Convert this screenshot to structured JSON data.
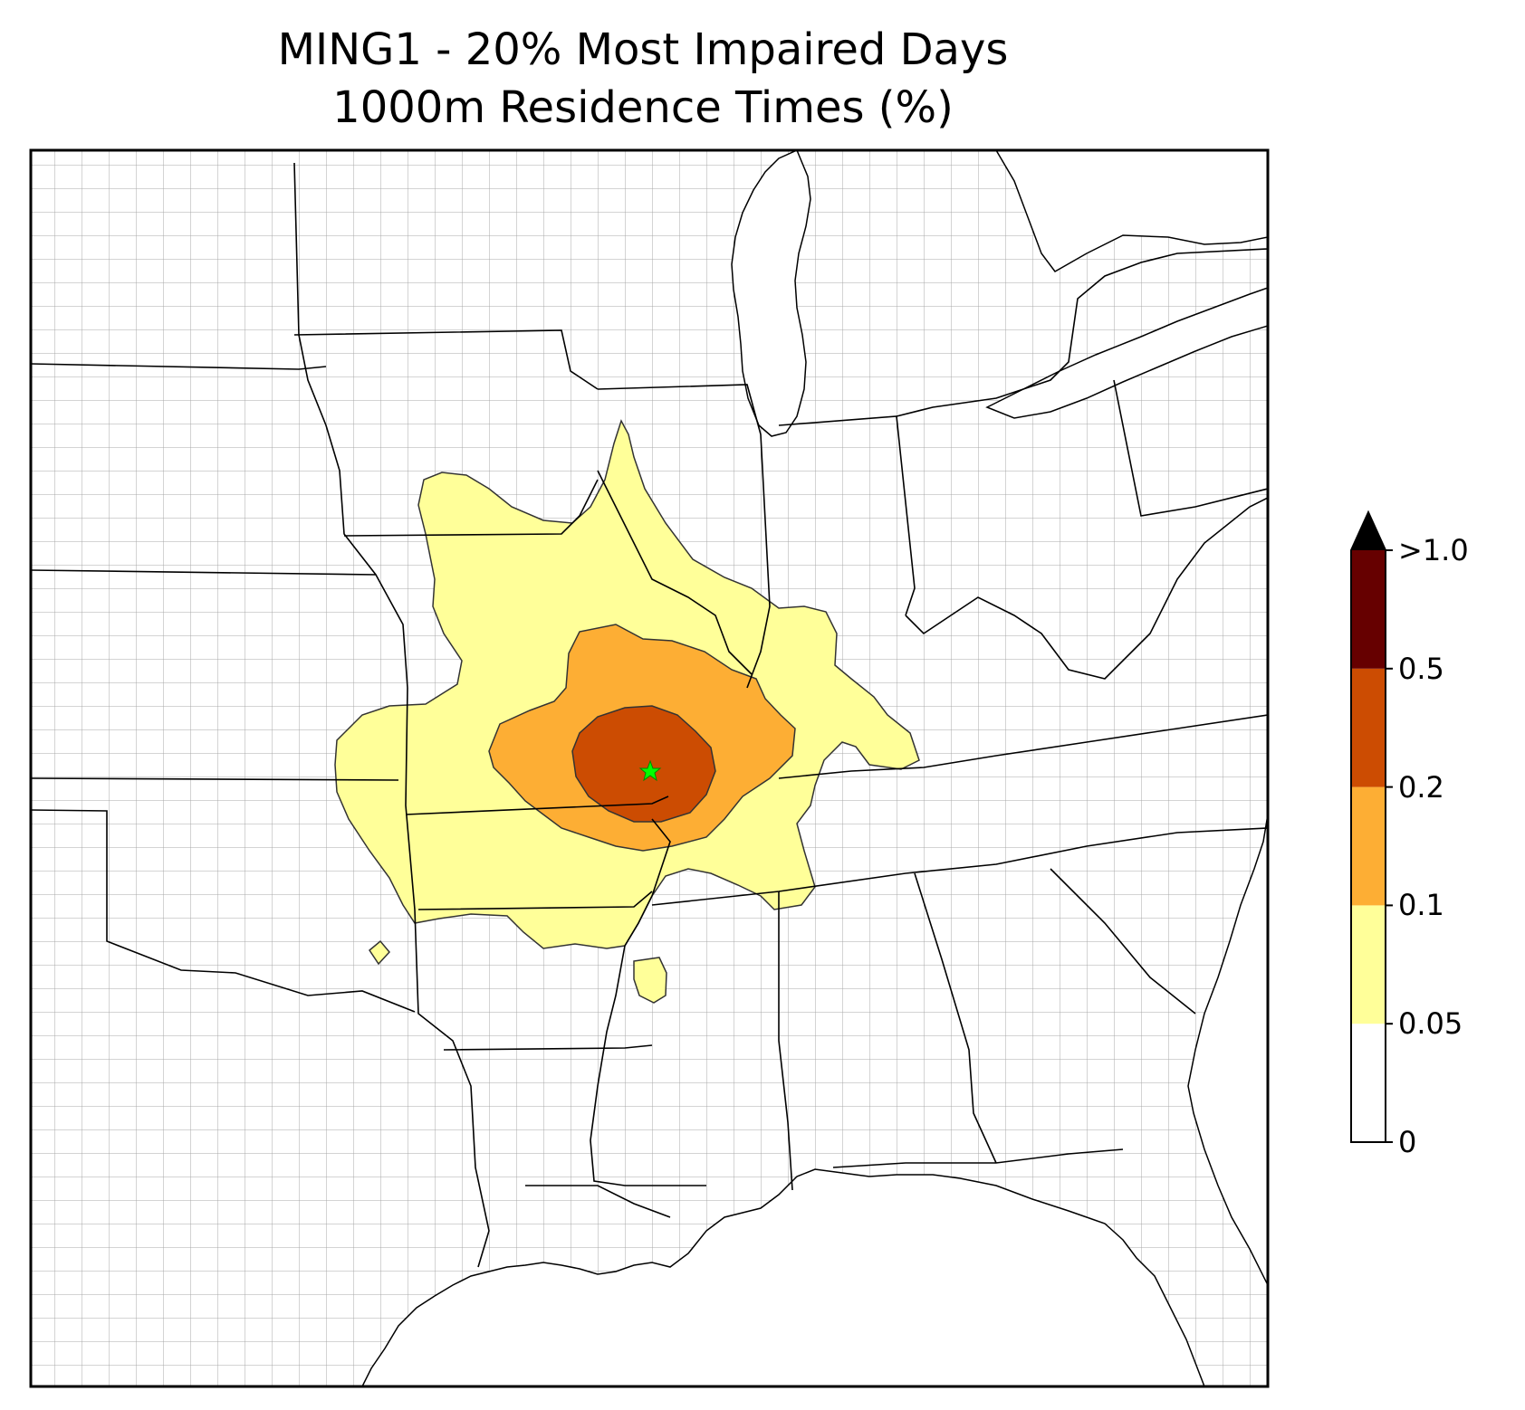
{
  "title": {
    "line1": "MING1 - 20% Most Impaired Days",
    "line2": "1000m Residence Times (%)"
  },
  "colorbar": {
    "ticks": [
      {
        "label": "0",
        "value": 0
      },
      {
        "label": "0.05",
        "value": 0.05
      },
      {
        "label": "0.1",
        "value": 0.1
      },
      {
        "label": "0.2",
        "value": 0.2
      },
      {
        "label": "0.5",
        "value": 0.5
      },
      {
        "label": ">1.0",
        "value": 1.0
      }
    ],
    "bins": [
      {
        "from": 0,
        "to": 0.05,
        "color": "#ffffff"
      },
      {
        "from": 0.05,
        "to": 0.1,
        "color": "#ffff99"
      },
      {
        "from": 0.1,
        "to": 0.2,
        "color": "#fdae34"
      },
      {
        "from": 0.2,
        "to": 0.5,
        "color": "#cc4c02"
      },
      {
        "from": 0.5,
        "to": 1.0,
        "color": "#660000"
      },
      {
        "from": 1.0,
        "to": null,
        "color": "#000000"
      }
    ],
    "extend": "max"
  },
  "map": {
    "site_marker": {
      "name": "MING1",
      "symbol": "star",
      "color": "#00ff00"
    },
    "state_line_color": "#000000",
    "county_line_color": "#999999"
  }
}
